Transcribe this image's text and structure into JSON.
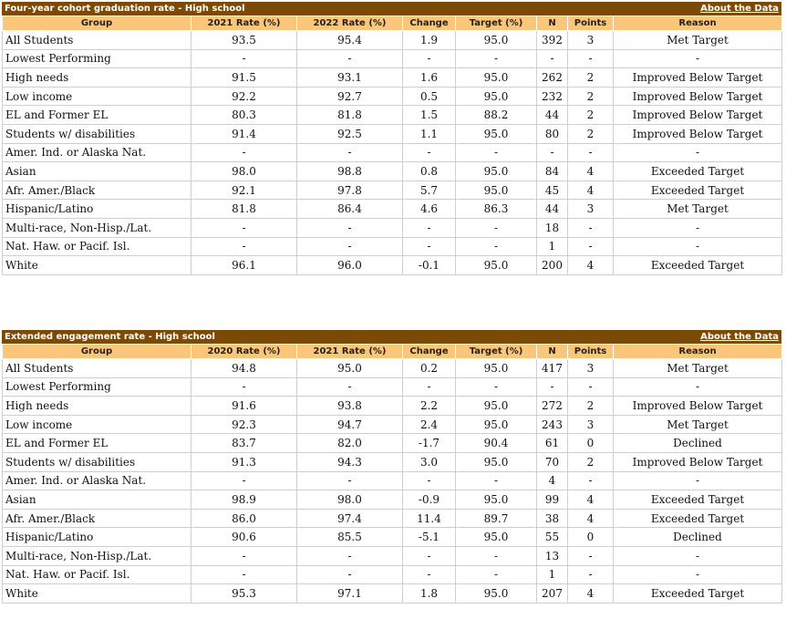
{
  "sections": [
    {
      "title": "Four-year cohort graduation rate - High school",
      "link": "About the Data",
      "columns": [
        "Group",
        "2021 Rate (%)",
        "2022 Rate (%)",
        "Change",
        "Target (%)",
        "N",
        "Points",
        "Reason"
      ],
      "rows": [
        [
          "All Students",
          "93.5",
          "95.4",
          "1.9",
          "95.0",
          "392",
          "3",
          "Met Target"
        ],
        [
          "Lowest Performing",
          "-",
          "-",
          "-",
          "-",
          "-",
          "-",
          "-"
        ],
        [
          "High needs",
          "91.5",
          "93.1",
          "1.6",
          "95.0",
          "262",
          "2",
          "Improved Below Target"
        ],
        [
          "Low income",
          "92.2",
          "92.7",
          "0.5",
          "95.0",
          "232",
          "2",
          "Improved Below Target"
        ],
        [
          "EL and Former EL",
          "80.3",
          "81.8",
          "1.5",
          "88.2",
          "44",
          "2",
          "Improved Below Target"
        ],
        [
          "Students w/ disabilities",
          "91.4",
          "92.5",
          "1.1",
          "95.0",
          "80",
          "2",
          "Improved Below Target"
        ],
        [
          "Amer. Ind. or Alaska Nat.",
          "-",
          "-",
          "-",
          "-",
          "-",
          "-",
          "-"
        ],
        [
          "Asian",
          "98.0",
          "98.8",
          "0.8",
          "95.0",
          "84",
          "4",
          "Exceeded Target"
        ],
        [
          "Afr. Amer./Black",
          "92.1",
          "97.8",
          "5.7",
          "95.0",
          "45",
          "4",
          "Exceeded Target"
        ],
        [
          "Hispanic/Latino",
          "81.8",
          "86.4",
          "4.6",
          "86.3",
          "44",
          "3",
          "Met Target"
        ],
        [
          "Multi-race, Non-Hisp./Lat.",
          "-",
          "-",
          "-",
          "-",
          "18",
          "-",
          "-"
        ],
        [
          "Nat. Haw. or Pacif. Isl.",
          "-",
          "-",
          "-",
          "-",
          "1",
          "-",
          "-"
        ],
        [
          "White",
          "96.1",
          "96.0",
          "-0.1",
          "95.0",
          "200",
          "4",
          "Exceeded Target"
        ]
      ]
    },
    {
      "title": "Extended engagement rate - High school",
      "link": "About the Data",
      "columns": [
        "Group",
        "2020 Rate (%)",
        "2021 Rate (%)",
        "Change",
        "Target (%)",
        "N",
        "Points",
        "Reason"
      ],
      "rows": [
        [
          "All Students",
          "94.8",
          "95.0",
          "0.2",
          "95.0",
          "417",
          "3",
          "Met Target"
        ],
        [
          "Lowest Performing",
          "-",
          "-",
          "-",
          "-",
          "-",
          "-",
          "-"
        ],
        [
          "High needs",
          "91.6",
          "93.8",
          "2.2",
          "95.0",
          "272",
          "2",
          "Improved Below Target"
        ],
        [
          "Low income",
          "92.3",
          "94.7",
          "2.4",
          "95.0",
          "243",
          "3",
          "Met Target"
        ],
        [
          "EL and Former EL",
          "83.7",
          "82.0",
          "-1.7",
          "90.4",
          "61",
          "0",
          "Declined"
        ],
        [
          "Students w/ disabilities",
          "91.3",
          "94.3",
          "3.0",
          "95.0",
          "70",
          "2",
          "Improved Below Target"
        ],
        [
          "Amer. Ind. or Alaska Nat.",
          "-",
          "-",
          "-",
          "-",
          "4",
          "-",
          "-"
        ],
        [
          "Asian",
          "98.9",
          "98.0",
          "-0.9",
          "95.0",
          "99",
          "4",
          "Exceeded Target"
        ],
        [
          "Afr. Amer./Black",
          "86.0",
          "97.4",
          "11.4",
          "89.7",
          "38",
          "4",
          "Exceeded Target"
        ],
        [
          "Hispanic/Latino",
          "90.6",
          "85.5",
          "-5.1",
          "95.0",
          "55",
          "0",
          "Declined"
        ],
        [
          "Multi-race, Non-Hisp./Lat.",
          "-",
          "-",
          "-",
          "-",
          "13",
          "-",
          "-"
        ],
        [
          "Nat. Haw. or Pacif. Isl.",
          "-",
          "-",
          "-",
          "-",
          "1",
          "-",
          "-"
        ],
        [
          "White",
          "95.3",
          "97.1",
          "1.8",
          "95.0",
          "207",
          "4",
          "Exceeded Target"
        ]
      ]
    }
  ],
  "colors": {
    "title_bar": "#7b4a06",
    "header_row": "#fbc67a",
    "grid": "#cfcfcf"
  }
}
